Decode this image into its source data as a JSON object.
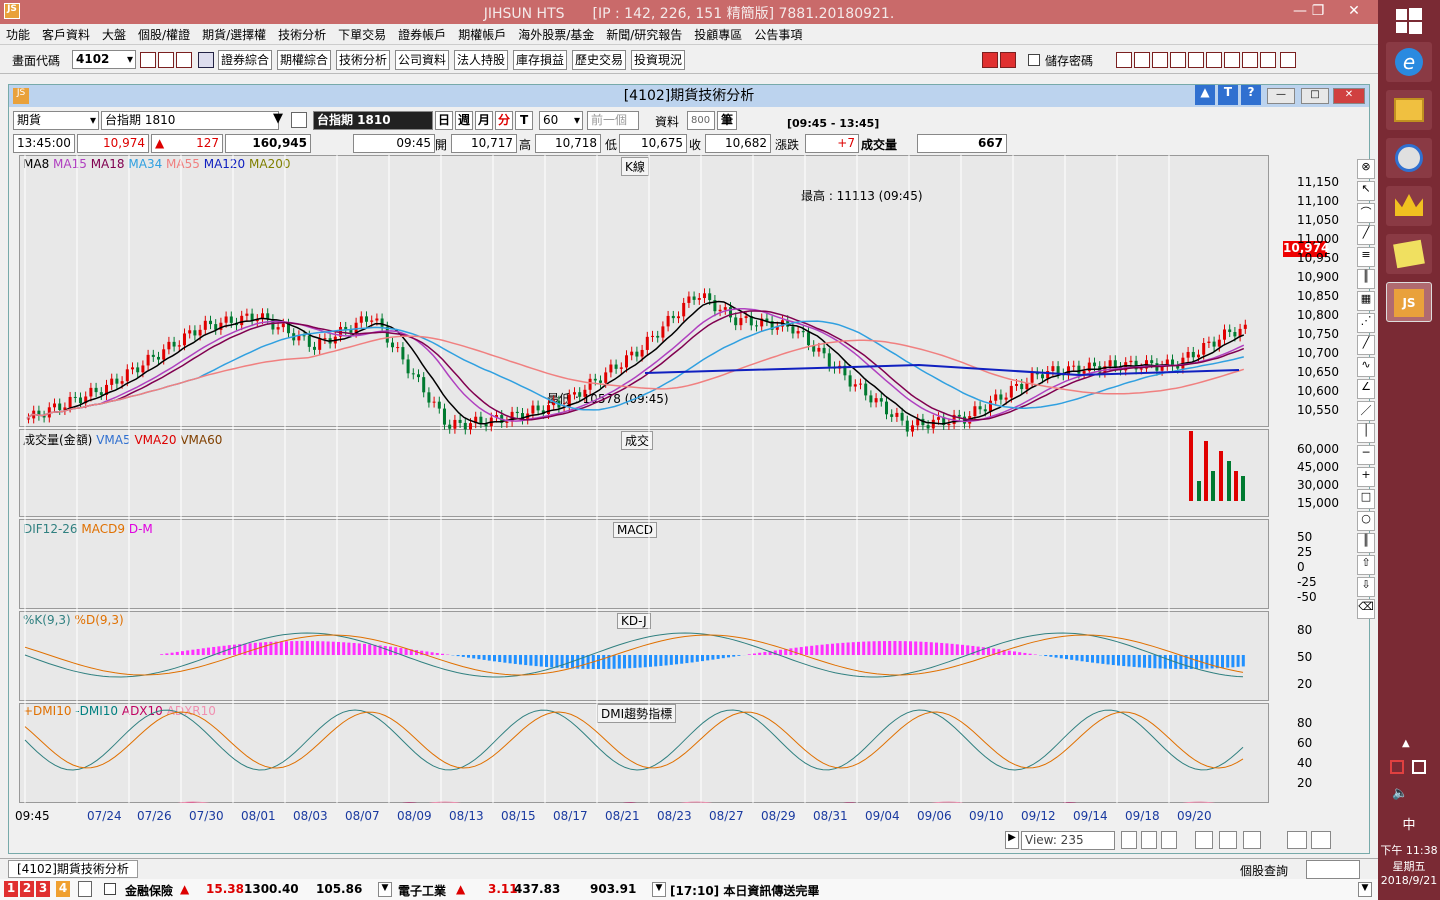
{
  "window": {
    "title": "JIHSUN HTS　　[IP : 142, 226, 151 精簡版] 7881.20180921."
  },
  "menu": [
    "功能",
    "客戶資料",
    "大盤",
    "個股/權證",
    "期貨/選擇權",
    "技術分析",
    "下單交易",
    "證券帳戶",
    "期權帳戶",
    "海外股票/基金",
    "新聞/研究報告",
    "投顧專區",
    "公告事項"
  ],
  "toolbar": {
    "code_label": "畫面代碼",
    "code_value": "4102",
    "buttons": [
      "證券綜合",
      "期權綜合",
      "技術分析",
      "公司資料",
      "法人持股",
      "庫存損益",
      "歷史交易",
      "投資現況"
    ],
    "save_pw": "儲存密碼"
  },
  "chartwin": {
    "title": "[4102]期貨技術分析",
    "type": "期貨",
    "symbol": "台指期 1810",
    "symbol_dark": "台指期 1810",
    "periods": [
      "日",
      "週",
      "月",
      "分",
      "T"
    ],
    "minutes": "60",
    "prev": "前一個",
    "data_label": "資料",
    "data_count": "800",
    "unit": "筆",
    "time_range": "[09:45 - 13:45]"
  },
  "quote": {
    "time": "13:45:00",
    "price": "10,974",
    "change": "127",
    "volume": "160,945",
    "bar_time": "09:45",
    "open_label": "開",
    "open": "10,717",
    "high_label": "高",
    "high": "10,718",
    "low_label": "低",
    "low": "10,675",
    "close_label": "收",
    "close": "10,682",
    "chg_label": "漲跌",
    "chg": "+7",
    "vol_label": "成交量",
    "vol": "667"
  },
  "panels": {
    "k": {
      "name": "K線",
      "legend": [
        "MA8",
        "MA15",
        "MA18",
        "MA34",
        "MA55",
        "MA120",
        "MA200"
      ],
      "high_note": "最高 : 11113 (09:45)",
      "low_note": "最低 : 10578 (09:45)",
      "price_tag": "10,974",
      "yticks": [
        "11,150",
        "11,100",
        "11,050",
        "11,000",
        "10,950",
        "10,900",
        "10,850",
        "10,800",
        "10,750",
        "10,700",
        "10,650",
        "10,600",
        "10,550"
      ]
    },
    "vol": {
      "name": "成交",
      "legend": [
        "成交量(金額)",
        "VMA5",
        "VMA20",
        "VMA60"
      ],
      "yticks": [
        "60,000",
        "45,000",
        "30,000",
        "15,000"
      ]
    },
    "macd": {
      "name": "MACD",
      "legend": [
        "DIF12-26",
        "MACD9",
        "D-M"
      ],
      "yticks": [
        "50",
        "25",
        "0",
        "-25",
        "-50"
      ]
    },
    "kd": {
      "name": "KD-J",
      "legend": [
        "%K(9,3)",
        "%D(9,3)"
      ],
      "yticks": [
        "80",
        "50",
        "20"
      ]
    },
    "dmi": {
      "name": "DMI趨勢指標",
      "legend": [
        "+DMI10",
        "-DMI10",
        "ADX10",
        "ADXR10"
      ],
      "yticks": [
        "80",
        "60",
        "40",
        "20"
      ]
    }
  },
  "xaxis": [
    "09:45",
    "07/24",
    "07/26",
    "07/30",
    "08/01",
    "08/03",
    "08/07",
    "08/09",
    "08/13",
    "08/15",
    "08/17",
    "08/21",
    "08/23",
    "08/27",
    "08/29",
    "08/31",
    "09/04",
    "09/06",
    "09/10",
    "09/12",
    "09/14",
    "09/18",
    "09/20"
  ],
  "view": "View:  235",
  "tab": "[4102]期貨技術分析",
  "stock_query": "個股查詢",
  "status": {
    "tabs": [
      "1",
      "2",
      "3",
      "4"
    ],
    "s1_name": "金融保險",
    "s1_chg": "15.38",
    "s1_idx": "1300.40",
    "s1_val": "105.86",
    "s2_name": "電子工業",
    "s2_chg": "3.11",
    "s2_idx": "437.83",
    "s2_val": "903.91",
    "msg": "[17:10] 本日資訊傳送完畢"
  },
  "clock": {
    "time": "下午 11:38",
    "weekday": "星期五",
    "date": "2018/9/21",
    "ime": "中"
  },
  "colors": {
    "up": "#e00000",
    "down": "#007a30",
    "ma8": "#000000",
    "ma15": "#b040c0",
    "ma18": "#800050",
    "ma34": "#30a0e0",
    "ma55": "#f08080",
    "ma120": "#1020c0",
    "ma200": "#808000"
  }
}
